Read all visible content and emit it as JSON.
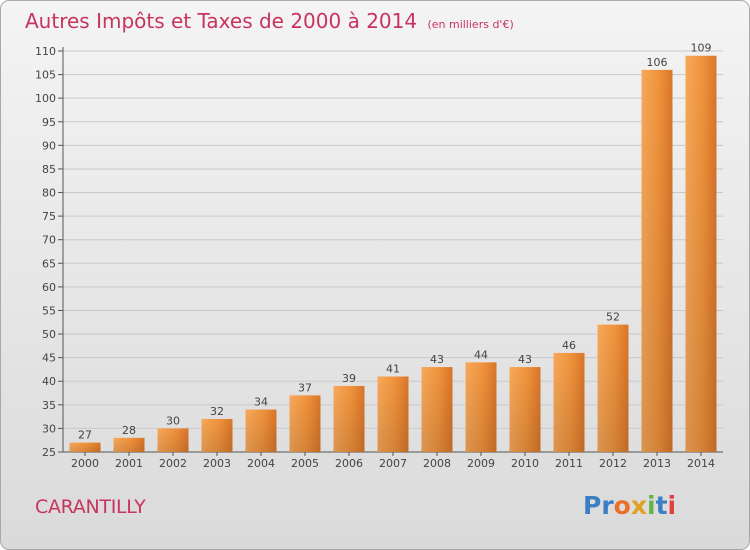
{
  "header": {
    "title": "Autres Impôts et Taxes de 2000 à 2014",
    "unit": "(en milliers d'€)"
  },
  "footer": {
    "town": "CARANTILLY",
    "logo_letters": [
      "P",
      "r",
      "o",
      "x",
      "i",
      "t",
      "i"
    ],
    "logo_colors": [
      "#3a7fc4",
      "#3a7fc4",
      "#e8712a",
      "#e0a020",
      "#67b446",
      "#3a7fc4",
      "#e04040"
    ]
  },
  "chart_data": {
    "type": "bar",
    "title": "Autres Impôts et Taxes de 2000 à 2014",
    "xlabel": "",
    "ylabel": "",
    "categories": [
      "2000",
      "2001",
      "2002",
      "2003",
      "2004",
      "2005",
      "2006",
      "2007",
      "2008",
      "2009",
      "2010",
      "2011",
      "2012",
      "2013",
      "2014"
    ],
    "values": [
      27,
      28,
      30,
      32,
      34,
      37,
      39,
      41,
      43,
      44,
      43,
      46,
      52,
      106,
      109
    ],
    "ylim": [
      25,
      110
    ],
    "yticks": [
      25,
      30,
      35,
      40,
      45,
      50,
      55,
      60,
      65,
      70,
      75,
      80,
      85,
      90,
      95,
      100,
      105,
      110
    ],
    "grid": true,
    "bar_color": "#f0933c"
  }
}
